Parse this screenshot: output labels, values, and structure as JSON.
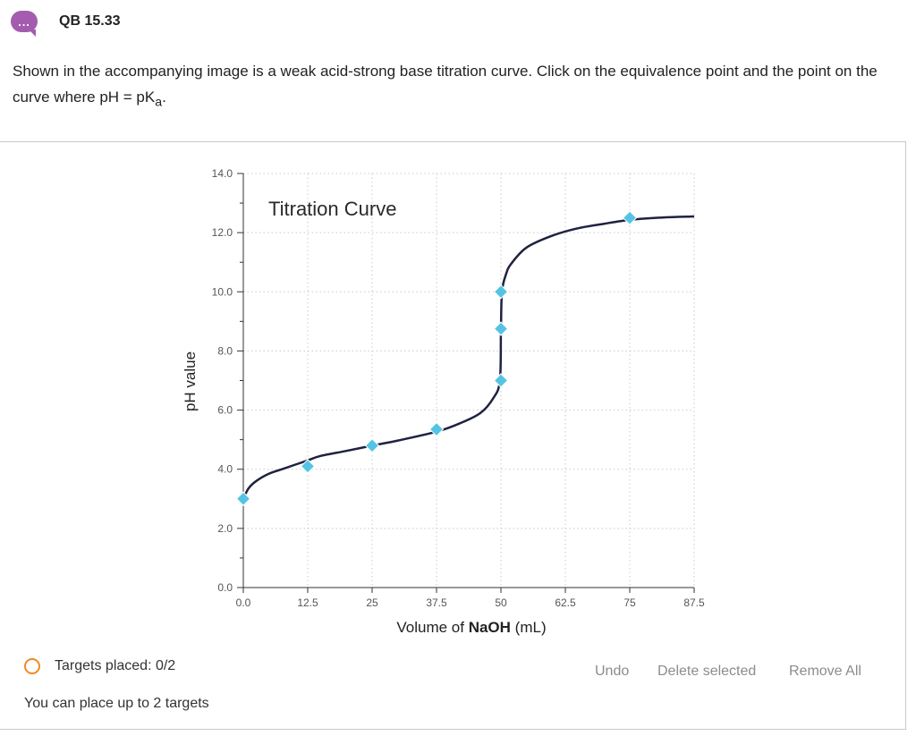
{
  "header": {
    "icon": "chat-bubble-icon",
    "icon_glyph": "...",
    "title": "QB 15.33"
  },
  "prompt": {
    "text": "Shown in the accompanying image is a weak acid-strong base titration curve. Click on the equivalence point and the point on the curve where pH = pK",
    "subscript": "a",
    "end": "."
  },
  "chart_data": {
    "type": "line",
    "title": "Titration Curve",
    "xlabel_prefix": "Volume of ",
    "xlabel_bold": "NaOH",
    "xlabel_suffix": " (mL)",
    "ylabel": "pH value",
    "xlim": [
      0,
      87.5
    ],
    "ylim": [
      0,
      14
    ],
    "x_ticks": [
      "0.0",
      "12.5",
      "25",
      "37.5",
      "50",
      "62.5",
      "75",
      "87.5"
    ],
    "x_tick_values": [
      0,
      12.5,
      25,
      37.5,
      50,
      62.5,
      75,
      87.5
    ],
    "y_ticks": [
      "0.0",
      "2.0",
      "4.0",
      "6.0",
      "8.0",
      "10.0",
      "12.0",
      "14.0"
    ],
    "y_tick_values": [
      0,
      2,
      4,
      6,
      8,
      10,
      12,
      14
    ],
    "grid": true,
    "curve": {
      "x": [
        0,
        1,
        2.5,
        5,
        7.5,
        10,
        12.5,
        15,
        20,
        25,
        30,
        37.5,
        42,
        46,
        48.5,
        49.8,
        50,
        50.2,
        51,
        52,
        55,
        60,
        65,
        70,
        75,
        80,
        87.5
      ],
      "y": [
        3.0,
        3.35,
        3.6,
        3.85,
        4.0,
        4.15,
        4.3,
        4.45,
        4.62,
        4.8,
        4.97,
        5.27,
        5.55,
        5.9,
        6.4,
        7.0,
        8.7,
        10.0,
        10.6,
        10.95,
        11.5,
        11.9,
        12.15,
        12.3,
        12.43,
        12.5,
        12.55
      ]
    },
    "markers": {
      "color": "#55c4e4",
      "points": [
        {
          "x": 0,
          "y": 3.0
        },
        {
          "x": 12.5,
          "y": 4.1
        },
        {
          "x": 25,
          "y": 4.8
        },
        {
          "x": 37.5,
          "y": 5.35
        },
        {
          "x": 50,
          "y": 7.0
        },
        {
          "x": 50,
          "y": 8.75
        },
        {
          "x": 50,
          "y": 10.0
        },
        {
          "x": 75,
          "y": 12.5
        }
      ]
    },
    "line_color": "#1f2240"
  },
  "status": {
    "icon": "status-ring-icon",
    "targets_placed": "Targets placed: 0/2",
    "hint": "You can place up to 2 targets"
  },
  "toolbar": {
    "undo": "Undo",
    "delete_selected": "Delete selected",
    "remove_all": "Remove All"
  },
  "colors": {
    "accent_purple": "#a35cae",
    "status_orange": "#f08a24",
    "button_gray": "#8c8c8c"
  }
}
